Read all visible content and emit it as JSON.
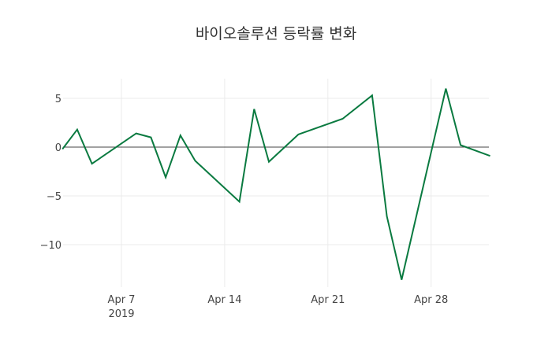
{
  "chart_data": {
    "type": "line",
    "title": "바이오솔루션 등락률 변화",
    "xlabel": "",
    "ylabel": "",
    "x": [
      "2019-04-03",
      "2019-04-04",
      "2019-04-05",
      "2019-04-08",
      "2019-04-09",
      "2019-04-10",
      "2019-04-11",
      "2019-04-12",
      "2019-04-15",
      "2019-04-16",
      "2019-04-17",
      "2019-04-19",
      "2019-04-22",
      "2019-04-24",
      "2019-04-25",
      "2019-04-26",
      "2019-04-29",
      "2019-04-30",
      "2019-05-02"
    ],
    "series": [
      {
        "name": "등락률",
        "color": "#0a7a40",
        "values": [
          -0.2,
          1.8,
          -1.7,
          1.4,
          1.0,
          -3.1,
          1.2,
          -1.4,
          -5.6,
          3.9,
          -1.5,
          1.3,
          2.9,
          5.3,
          -7.1,
          -13.6,
          6.0,
          0.2,
          -0.9
        ]
      }
    ],
    "x_ticks": [
      {
        "label": "Apr 7",
        "sublabel": "2019",
        "date": "2019-04-07"
      },
      {
        "label": "Apr 14",
        "sublabel": "",
        "date": "2019-04-14"
      },
      {
        "label": "Apr 21",
        "sublabel": "",
        "date": "2019-04-21"
      },
      {
        "label": "Apr 28",
        "sublabel": "",
        "date": "2019-04-28"
      }
    ],
    "y_ticks": [
      {
        "label": "5",
        "value": 5
      },
      {
        "label": "0",
        "value": 0
      },
      {
        "label": "−5",
        "value": -5
      },
      {
        "label": "−10",
        "value": -10
      }
    ],
    "xlim": [
      "2019-04-03",
      "2019-05-02"
    ],
    "ylim": [
      -14.3,
      7.0
    ],
    "grid": true,
    "zero_line": true,
    "legend": false
  }
}
